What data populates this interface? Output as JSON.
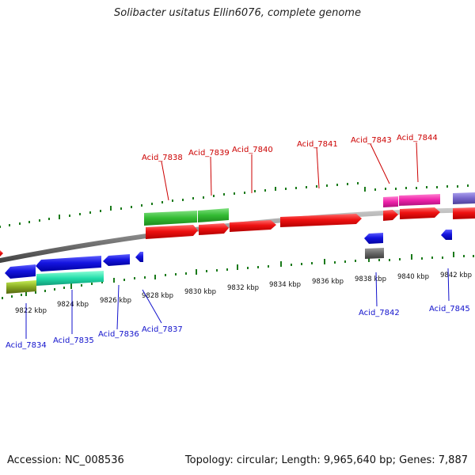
{
  "title": "Solibacter usitatus Ellin6076, complete genome",
  "footer": {
    "accession": "Accession: NC_008536",
    "stats": "Topology: circular; Length: 9,965,640 bp; Genes: 7,887"
  },
  "colors": {
    "cds_forward": "#ee1111",
    "cds_reverse": "#1111dd",
    "label_forward": "#cc0000",
    "label_reverse": "#1111cc",
    "rna_green": "#33bb33",
    "rna_magenta": "#ee22aa",
    "rna_cyan": "#22ddaa",
    "olive": "#88aa22",
    "gray": "#666666",
    "purple": "#7766cc",
    "backbone": "#888888",
    "ticks": "#1a7a1a"
  },
  "ticks": {
    "labels": [
      "9822 kbp",
      "9824 kbp",
      "9826 kbp",
      "9828 kbp",
      "9830 kbp",
      "9832 kbp",
      "9834 kbp",
      "9836 kbp",
      "9838 kbp",
      "9840 kbp",
      "9842 kbp"
    ]
  },
  "genes_forward": [
    "Acid_7838",
    "Acid_7839",
    "Acid_7840",
    "Acid_7841",
    "Acid_7843",
    "Acid_7844"
  ],
  "genes_reverse": [
    "Acid_7834",
    "Acid_7835",
    "Acid_7836",
    "Acid_7837",
    "Acid_7842",
    "Acid_7845"
  ]
}
